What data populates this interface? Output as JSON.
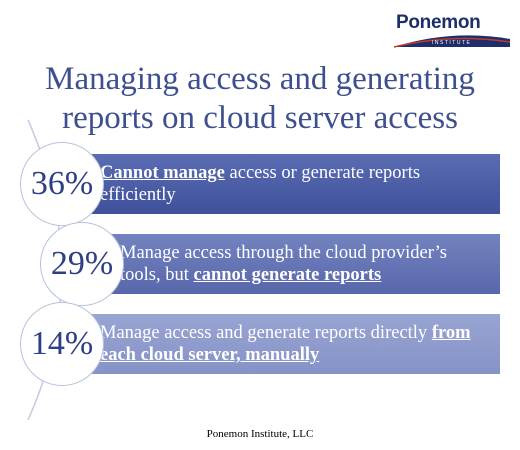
{
  "logo": {
    "word": "Ponemon",
    "sub": "INSTITUTE"
  },
  "title": "Managing access and generating reports on cloud server access",
  "items": [
    {
      "pct": "36%",
      "lead": "",
      "bold": "Cannot manage",
      "rest": " access or generate reports efficiently"
    },
    {
      "pct": "29%",
      "lead": "Manage access through the cloud provider’s tools, but ",
      "bold": "cannot generate reports",
      "rest": ""
    },
    {
      "pct": "14%",
      "lead": "Manage access and generate reports directly ",
      "bold": "from each cloud server, manually",
      "rest": ""
    }
  ],
  "footer": "Ponemon Institute, LLC",
  "colors": {
    "title": "#3d4f8f",
    "bar1": "#4a5ca5",
    "bar2": "#6474b5",
    "bar3": "#8e9bcc",
    "logo": "#1c2f6b"
  }
}
